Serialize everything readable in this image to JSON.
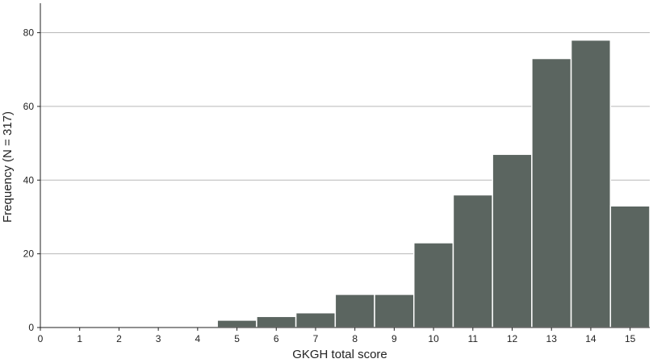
{
  "chart_data": {
    "type": "bar",
    "title": "",
    "xlabel": "GKGH total score",
    "ylabel": "Frequency (N = 317)",
    "x_ticks": [
      "0",
      "1",
      "2",
      "3",
      "4",
      "5",
      "6",
      "7",
      "8",
      "9",
      "10",
      "11",
      "12",
      "13",
      "14",
      "15"
    ],
    "y_ticks": [
      "0",
      "20",
      "40",
      "60",
      "80"
    ],
    "categories": [
      "5",
      "6",
      "7",
      "8",
      "9",
      "10",
      "11",
      "12",
      "13",
      "14",
      "15"
    ],
    "values": [
      2,
      3,
      4,
      9,
      9,
      23,
      36,
      47,
      73,
      78,
      33
    ],
    "xlim": [
      0,
      15.5
    ],
    "ylim": [
      0,
      88
    ],
    "grid": true,
    "bar_color": "#5b6560",
    "bar_edge_color": "#ffffff",
    "grid_color": "#b8b8b8"
  }
}
